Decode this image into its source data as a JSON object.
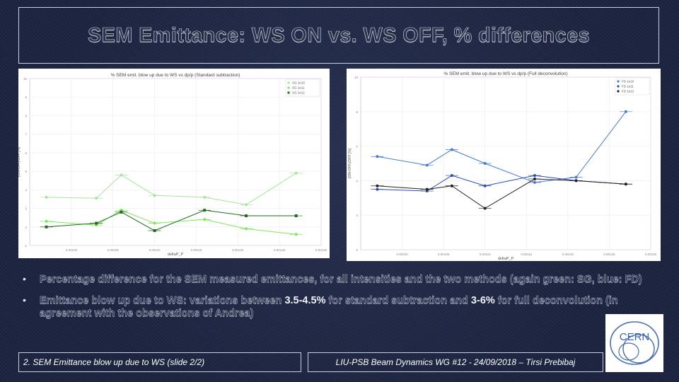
{
  "slide": {
    "title": "SEM Emittance: WS ON vs. WS OFF, % differences",
    "bullets": [
      {
        "text": "Percentage difference for the SEM measured emittances, for all intensities and the two methods (again green: SG, blue: FD)"
      },
      {
        "pre": "Emittance blow up due to WS: variations between ",
        "hl1": "3.5-4.5%",
        "mid": " for standard subtraction and ",
        "hl2": "3-6%",
        "post": " for full deconvolution (in agreement with the observations of Andrea)"
      }
    ],
    "footer_left": "2. SEM Emittance blow up due to WS (slide 2/2)",
    "footer_right": "LIU-PSB Beam Dynamics WG #12 - 24/09/2018 – Tirsi Prebibaj",
    "logo_text": "CERN",
    "colors": {
      "bg": "#1c2440",
      "title": "#2c3550"
    }
  },
  "chart_data": [
    {
      "type": "line",
      "title": "% SEM emit. blow up due to WS vs dp/p (Standard subtraction)",
      "xlabel": "deltaP_P",
      "ylabel": "(ON-OFF)/OFF [%]",
      "x_ticks": [
        "0.00100",
        "0.00105",
        "0.00110",
        "0.00115",
        "0.00120",
        "0.00125",
        "0.00130"
      ],
      "y_ticks": [
        "1",
        "2",
        "3",
        "4",
        "5",
        "6",
        "7",
        "8",
        "9",
        "10"
      ],
      "xlim": [
        0.00095,
        0.0013
      ],
      "ylim": [
        1,
        10
      ],
      "x": [
        0.00097,
        0.00103,
        0.00106,
        0.0011,
        0.00116,
        0.00121,
        0.00127
      ],
      "legend": "top-right",
      "series": [
        {
          "name": "SG 1e10",
          "color": "#a8e4a0",
          "marker": "circle",
          "values": [
            3.6,
            3.55,
            4.8,
            3.7,
            3.6,
            3.2,
            4.9
          ]
        },
        {
          "name": "SG 1e11",
          "color": "#7ee85a",
          "marker": "circle",
          "values": [
            2.3,
            2.1,
            2.9,
            2.2,
            2.4,
            1.9,
            1.6
          ]
        },
        {
          "name": "SG 1e12",
          "color": "#1f6b1f",
          "marker": "square",
          "values": [
            2.0,
            2.2,
            2.8,
            1.8,
            2.9,
            2.6,
            2.6
          ]
        }
      ]
    },
    {
      "type": "line",
      "title": "% SEM emit. blow up due to WS vs dp/p (Full deconvolution)",
      "xlabel": "deltaP_P",
      "ylabel": "(ON-OFF)/OFF [%]",
      "x_ticks": [
        "0.00100",
        "0.00105",
        "0.00110",
        "0.00115",
        "0.00120",
        "0.00125",
        "0.00130"
      ],
      "y_ticks": [
        "0",
        "2",
        "4",
        "6",
        "8",
        "10"
      ],
      "xlim": [
        0.00095,
        0.0013
      ],
      "ylim": [
        0,
        10
      ],
      "x": [
        0.00097,
        0.00103,
        0.00106,
        0.0011,
        0.00116,
        0.00121,
        0.00127
      ],
      "legend": "top-right",
      "series": [
        {
          "name": "FD 1e10",
          "color": "#4a7bd8",
          "marker": "circle",
          "values": [
            5.4,
            4.9,
            5.8,
            5.0,
            3.9,
            4.2,
            8.0
          ]
        },
        {
          "name": "FD 1e11",
          "color": "#2a4db0",
          "marker": "circle",
          "values": [
            3.5,
            3.4,
            4.3,
            3.7,
            4.3,
            4.0,
            3.8
          ]
        },
        {
          "name": "FD 1e12",
          "color": "#222222",
          "marker": "circle",
          "values": [
            3.7,
            3.5,
            3.7,
            2.4,
            4.1,
            4.0,
            3.8
          ]
        }
      ]
    }
  ]
}
